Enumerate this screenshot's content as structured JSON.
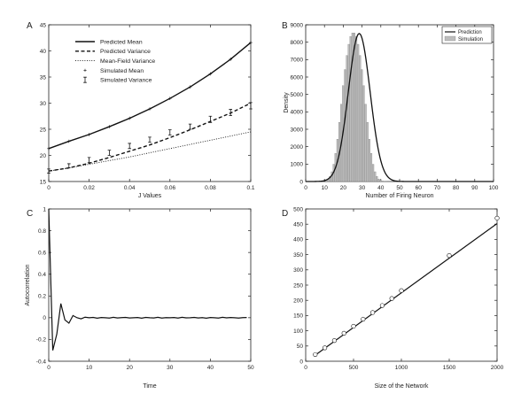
{
  "chart_data": [
    {
      "id": "A",
      "type": "line",
      "panel_label": "A",
      "xlabel": "J Values",
      "ylabel": "",
      "xlim": [
        0,
        0.1
      ],
      "ylim": [
        15,
        45
      ],
      "xticks": [
        0,
        0.02,
        0.04,
        0.06,
        0.08,
        0.1
      ],
      "xtick_labels": [
        "0",
        "0.02",
        "0.04",
        "0.06",
        "0.08",
        "0.1"
      ],
      "yticks": [
        15,
        20,
        25,
        30,
        35,
        40,
        45
      ],
      "ytick_labels": [
        "15",
        "20",
        "25",
        "30",
        "35",
        "40",
        "45"
      ],
      "legend_position": "top-left",
      "legend": [
        "Predicted Mean",
        "Predicted Variance",
        "Mean-Field Variance",
        "Simulated Mean",
        "Simulated Variance"
      ],
      "x": [
        0,
        0.01,
        0.02,
        0.03,
        0.04,
        0.05,
        0.06,
        0.07,
        0.08,
        0.09,
        0.1
      ],
      "series": [
        {
          "name": "Predicted Mean",
          "style": "solid",
          "values": [
            21.3,
            22.7,
            24.0,
            25.5,
            27.1,
            28.9,
            30.9,
            33.1,
            35.6,
            38.4,
            41.6
          ]
        },
        {
          "name": "Predicted Variance",
          "style": "dashed",
          "values": [
            17.0,
            17.6,
            18.5,
            19.6,
            20.8,
            22.0,
            23.4,
            24.9,
            26.5,
            28.1,
            30.0
          ]
        },
        {
          "name": "Mean-Field Variance",
          "style": "dotted",
          "values": [
            17.0,
            17.6,
            18.3,
            19.0,
            19.7,
            20.5,
            21.3,
            22.1,
            22.9,
            23.7,
            24.5
          ]
        },
        {
          "name": "Simulated Mean",
          "style": "plus",
          "values": [
            21.3,
            22.7,
            24.0,
            25.5,
            27.1,
            28.9,
            30.9,
            33.1,
            35.6,
            38.4,
            41.6
          ]
        },
        {
          "name": "Simulated Variance",
          "style": "errorbar",
          "values": [
            17.0,
            18.0,
            19.1,
            20.5,
            21.8,
            23.0,
            24.4,
            25.5,
            26.9,
            28.2,
            29.5
          ],
          "errors": [
            0.4,
            0.4,
            0.5,
            0.5,
            0.5,
            0.5,
            0.5,
            0.5,
            0.6,
            0.6,
            0.6
          ]
        }
      ]
    },
    {
      "id": "B",
      "type": "bar",
      "panel_label": "B",
      "xlabel": "Number of Firing Neuron",
      "ylabel": "Density",
      "xlim": [
        0,
        100
      ],
      "ylim": [
        0,
        9000
      ],
      "xticks": [
        0,
        10,
        20,
        30,
        40,
        50,
        60,
        70,
        80,
        90,
        100
      ],
      "xtick_labels": [
        "0",
        "10",
        "20",
        "30",
        "40",
        "50",
        "60",
        "70",
        "80",
        "90",
        "100"
      ],
      "yticks": [
        0,
        1000,
        2000,
        3000,
        4000,
        5000,
        6000,
        7000,
        8000,
        9000
      ],
      "ytick_labels": [
        "0",
        "1000",
        "2000",
        "3000",
        "4000",
        "5000",
        "6000",
        "7000",
        "8000",
        "9000"
      ],
      "legend_position": "top-right",
      "legend": [
        "Prediction",
        "Simulation"
      ],
      "prediction": {
        "mean": 28.5,
        "sd": 5.8,
        "peak": 8500
      },
      "simulation_bins": [
        11,
        12,
        13,
        14,
        15,
        16,
        17,
        18,
        19,
        20,
        21,
        22,
        23,
        24,
        25,
        26,
        27,
        28,
        29,
        30,
        31,
        32,
        33,
        34,
        35,
        36,
        37,
        38,
        39,
        40,
        41,
        42,
        43,
        44,
        45,
        46
      ],
      "simulation_values": [
        60,
        140,
        290,
        560,
        990,
        1610,
        2430,
        3400,
        4440,
        5500,
        6430,
        7240,
        7880,
        8330,
        8530,
        8530,
        8330,
        7880,
        7240,
        6430,
        5500,
        4440,
        3400,
        2430,
        1610,
        990,
        560,
        290,
        140,
        60,
        30,
        12,
        5,
        2,
        1,
        0
      ]
    },
    {
      "id": "C",
      "type": "line",
      "panel_label": "C",
      "xlabel": "Time",
      "ylabel": "Autocorrelation",
      "xlim": [
        0,
        50
      ],
      "ylim": [
        -0.4,
        1
      ],
      "xticks": [
        0,
        10,
        20,
        30,
        40,
        50
      ],
      "xtick_labels": [
        "0",
        "10",
        "20",
        "30",
        "40",
        "50"
      ],
      "yticks": [
        -0.4,
        -0.2,
        0,
        0.2,
        0.4,
        0.6,
        0.8,
        1
      ],
      "ytick_labels": [
        "-0.4",
        "-0.2",
        "0",
        "0.2",
        "0.4",
        "0.6",
        "0.8",
        "1"
      ],
      "x": [
        0,
        1,
        2,
        3,
        4,
        5,
        6,
        7,
        8,
        9,
        10,
        11,
        12,
        13,
        14,
        15,
        16,
        17,
        18,
        19,
        20,
        21,
        22,
        23,
        24,
        25,
        26,
        27,
        28,
        29,
        30,
        31,
        32,
        33,
        34,
        35,
        36,
        37,
        38,
        39,
        40,
        41,
        42,
        43,
        44,
        45,
        46,
        47,
        48,
        49
      ],
      "values": [
        1.0,
        -0.3,
        -0.15,
        0.13,
        -0.02,
        -0.05,
        0.02,
        0.0,
        -0.01,
        0.005,
        0.0,
        0.003,
        -0.004,
        0.002,
        0.0,
        -0.003,
        0.004,
        -0.002,
        0.001,
        0.003,
        -0.002,
        0.0,
        0.002,
        -0.004,
        0.003,
        0.0,
        -0.002,
        0.004,
        -0.003,
        0.001,
        0.0,
        0.002,
        -0.003,
        0.004,
        -0.001,
        0.0,
        0.003,
        -0.002,
        0.001,
        -0.004,
        0.002,
        0.0,
        -0.003,
        0.004,
        -0.001,
        0.002,
        0.0,
        -0.003,
        0.001,
        0.002
      ]
    },
    {
      "id": "D",
      "type": "scatter",
      "panel_label": "D",
      "xlabel": "Size of the Network",
      "ylabel": "",
      "xlim": [
        0,
        2000
      ],
      "ylim": [
        0,
        500
      ],
      "xticks": [
        0,
        500,
        1000,
        1500,
        2000
      ],
      "xtick_labels": [
        "0",
        "500",
        "1000",
        "1500",
        "2000"
      ],
      "yticks": [
        0,
        50,
        100,
        150,
        200,
        250,
        300,
        350,
        400,
        450,
        500
      ],
      "ytick_labels": [
        "0",
        "50",
        "100",
        "150",
        "200",
        "250",
        "300",
        "350",
        "400",
        "450",
        "500"
      ],
      "x": [
        100,
        200,
        300,
        400,
        500,
        600,
        700,
        800,
        900,
        1000,
        1500,
        2000
      ],
      "values": [
        22,
        44,
        68,
        92,
        115,
        138,
        160,
        183,
        206,
        232,
        347,
        470
      ],
      "fit_line": {
        "x": [
          100,
          2000
        ],
        "y": [
          20,
          452
        ]
      }
    }
  ]
}
